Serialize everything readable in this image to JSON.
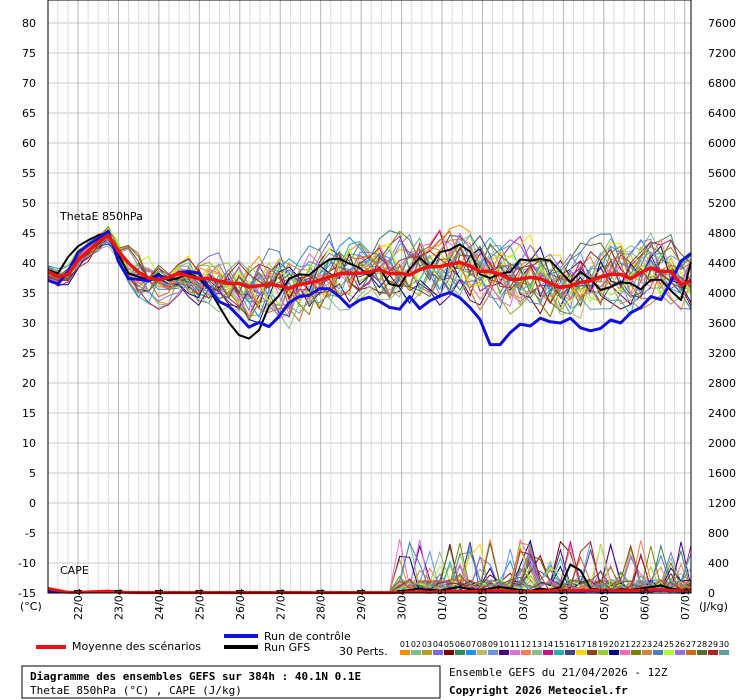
{
  "chart_data": {
    "type": "line",
    "panels": [
      {
        "name_label": "ThetaE 850hPa",
        "ylim": [
          -15,
          80
        ]
      },
      {
        "name_label": "CAPE",
        "ylim": [
          0,
          7600
        ]
      }
    ],
    "left_axis": {
      "ticks": [
        80,
        75,
        70,
        65,
        60,
        55,
        50,
        45,
        40,
        35,
        30,
        25,
        20,
        15,
        10,
        5,
        0,
        -5,
        -10,
        -15
      ],
      "unit": "(°C)"
    },
    "right_axis": {
      "ticks": [
        7600,
        7200,
        6800,
        6400,
        6000,
        5600,
        5200,
        4800,
        4400,
        4000,
        3600,
        3200,
        2800,
        2400,
        2000,
        1600,
        1200,
        800,
        400,
        0
      ],
      "unit": "(J/kg)"
    },
    "x_dates": [
      "22/04",
      "23/04",
      "24/04",
      "25/04",
      "26/04",
      "27/04",
      "28/04",
      "29/04",
      "30/04",
      "01/05",
      "02/05",
      "03/05",
      "04/05",
      "05/05",
      "06/05",
      "07/05"
    ],
    "x_steps": 65,
    "series_mean": {
      "name": "Moyenne des scénarios",
      "color": "#ee1111",
      "theta": [
        38.6,
        37.7,
        38.1,
        40.5,
        42.0,
        43.5,
        44.6,
        42.0,
        40.0,
        38.5,
        37.5,
        37.2,
        37.6,
        38.3,
        37.8,
        37.4,
        37.4,
        37.0,
        36.6,
        36.6,
        36.0,
        36.2,
        36.5,
        36.2,
        35.8,
        36.4,
        36.7,
        37.1,
        37.7,
        38.2,
        38.3,
        38.3,
        38.5,
        38.9,
        38.2,
        38.3,
        38.0,
        38.9,
        39.4,
        39.4,
        39.8,
        40.1,
        39.5,
        38.6,
        38.6,
        38.1,
        37.3,
        37.3,
        37.6,
        37.4,
        36.6,
        35.9,
        36.2,
        36.8,
        37.0,
        37.7,
        38.1,
        38.1,
        37.4,
        38.4,
        39.2,
        38.6,
        38.6,
        36.4,
        37.0
      ],
      "cape": [
        60,
        35,
        10,
        8,
        15,
        20,
        25,
        12,
        8,
        5,
        5,
        5,
        5,
        5,
        5,
        5,
        5,
        5,
        5,
        5,
        5,
        5,
        5,
        5,
        5,
        5,
        5,
        5,
        5,
        5,
        5,
        5,
        5,
        5,
        5,
        10,
        15,
        15,
        10,
        20,
        25,
        20,
        20,
        25,
        30,
        30,
        25,
        20,
        20,
        25,
        30,
        35,
        30,
        35,
        40,
        35,
        35,
        30,
        30,
        35,
        40,
        45,
        35,
        30,
        30
      ]
    },
    "series_control": {
      "name": "Run de contrôle",
      "color": "#1010dd",
      "theta": [
        37.1,
        36.5,
        38.6,
        41.8,
        43.0,
        44.1,
        45.3,
        40.3,
        37.4,
        37.3,
        37.0,
        37.9,
        37.4,
        38.4,
        38.6,
        38.3,
        35.8,
        33.6,
        32.8,
        31.1,
        29.3,
        30.1,
        29.4,
        31.1,
        33.4,
        34.4,
        34.6,
        35.7,
        35.7,
        34.4,
        32.7,
        33.8,
        34.3,
        33.6,
        32.6,
        32.3,
        34.4,
        32.4,
        33.7,
        34.5,
        35.1,
        34.2,
        32.6,
        30.6,
        26.4,
        26.4,
        28.4,
        29.8,
        29.5,
        30.8,
        30.2,
        30.0,
        30.8,
        29.2,
        28.7,
        29.1,
        30.5,
        30.0,
        31.7,
        32.6,
        34.4,
        33.9,
        36.9,
        40.3,
        41.6
      ],
      "cape": [
        20,
        15,
        10,
        8,
        10,
        12,
        15,
        10,
        8,
        5,
        5,
        5,
        5,
        5,
        5,
        5,
        5,
        5,
        5,
        5,
        5,
        5,
        5,
        5,
        5,
        5,
        5,
        5,
        5,
        5,
        5,
        5,
        5,
        5,
        5,
        5,
        10,
        10,
        5,
        10,
        15,
        10,
        10,
        15,
        20,
        20,
        15,
        10,
        10,
        15,
        20,
        20,
        15,
        20,
        25,
        20,
        20,
        20,
        15,
        20,
        25,
        30,
        25,
        20,
        20
      ]
    },
    "series_gfs": {
      "name": "Run GFS",
      "color": "#000000",
      "theta": [
        38.8,
        38.3,
        41.0,
        42.8,
        43.8,
        44.6,
        45.0,
        41.4,
        38.3,
        37.7,
        37.2,
        38.2,
        37.1,
        37.5,
        38.3,
        37.5,
        35.7,
        32.9,
        30.1,
        28.0,
        27.4,
        28.8,
        32.8,
        34.6,
        37.4,
        38.1,
        38.0,
        39.4,
        40.6,
        40.7,
        39.9,
        39.2,
        37.8,
        39.2,
        36.5,
        36.1,
        39.0,
        40.9,
        39.3,
        41.8,
        42.2,
        43.1,
        41.9,
        38.1,
        37.5,
        38.2,
        38.5,
        40.6,
        40.4,
        40.7,
        40.4,
        38.6,
        36.8,
        38.5,
        37.3,
        35.5,
        36.0,
        36.8,
        36.6,
        35.6,
        37.2,
        37.2,
        35.4,
        33.8,
        40.1
      ],
      "cape": [
        30,
        20,
        10,
        8,
        10,
        15,
        20,
        10,
        8,
        5,
        5,
        5,
        5,
        5,
        5,
        5,
        5,
        5,
        5,
        5,
        5,
        5,
        5,
        5,
        5,
        5,
        5,
        5,
        5,
        5,
        5,
        5,
        5,
        5,
        5,
        20,
        40,
        60,
        40,
        30,
        60,
        80,
        50,
        40,
        60,
        80,
        60,
        40,
        30,
        60,
        40,
        80,
        380,
        300,
        60,
        40,
        30,
        50,
        40,
        60,
        80,
        100,
        60,
        40,
        50
      ]
    },
    "members": {
      "labels": [
        "01",
        "02",
        "03",
        "04",
        "05",
        "06",
        "07",
        "08",
        "09",
        "10",
        "11",
        "12",
        "13",
        "14",
        "15",
        "16",
        "17",
        "18",
        "19",
        "20",
        "21",
        "22",
        "23",
        "24",
        "25",
        "26",
        "27",
        "28",
        "29",
        "30"
      ],
      "colors": [
        "#ff8c00",
        "#7fbf7f",
        "#b0a020",
        "#7b68ee",
        "#800000",
        "#2e8b57",
        "#1e90ff",
        "#bdb76b",
        "#6495ed",
        "#4b0082",
        "#da70d6",
        "#ff7f50",
        "#8fbc8f",
        "#c71585",
        "#20b2aa",
        "#483d8b",
        "#ffd700",
        "#8b4513",
        "#9acd32",
        "#00008b",
        "#ff69b4",
        "#808000",
        "#cd853f",
        "#4682b4",
        "#adff2f",
        "#9370db",
        "#d2691e",
        "#556b2f",
        "#b22222",
        "#5f9ea0"
      ],
      "count_label": "30 Perts."
    },
    "labels": {
      "title_box": "Diagramme des ensembles GEFS sur 384h : 40.1N 0.1E",
      "subtitle_box": "ThetaE 850hPa (°C) , CAPE (J/kg)",
      "run_info": "Ensemble GEFS du 21/04/2026 - 12Z",
      "copyright": "Copyright 2026 Meteociel.fr"
    }
  }
}
